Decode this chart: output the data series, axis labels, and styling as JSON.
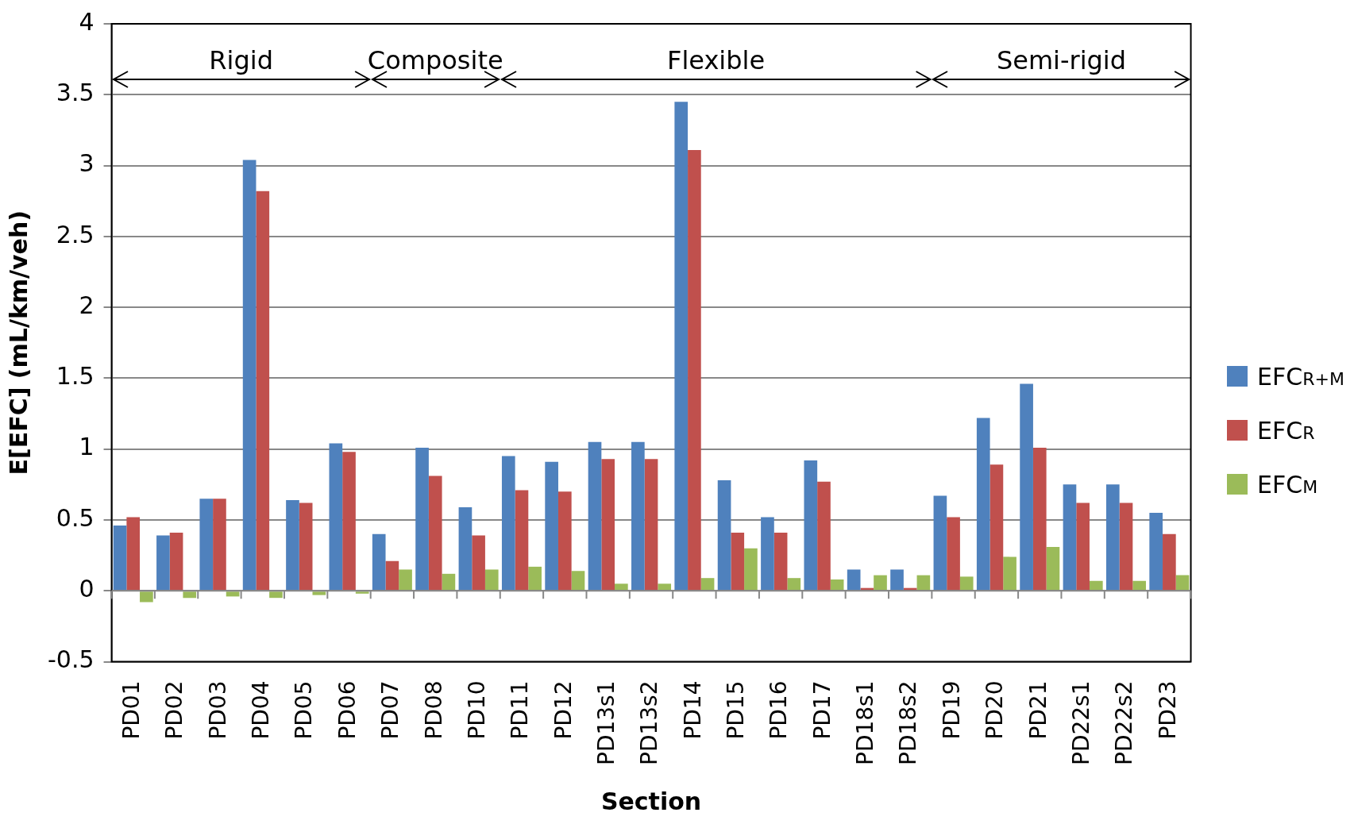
{
  "chart_data": {
    "type": "bar",
    "xlabel": "Section",
    "ylabel": "E[EFC] (mL/km/veh)",
    "categories": [
      "PD01",
      "PD02",
      "PD03",
      "PD04",
      "PD05",
      "PD06",
      "PD07",
      "PD08",
      "PD10",
      "PD11",
      "PD12",
      "PD13s1",
      "PD13s2",
      "PD14",
      "PD15",
      "PD16",
      "PD17",
      "PD18s1",
      "PD18s2",
      "PD19",
      "PD20",
      "PD21",
      "PD22s1",
      "PD22s2",
      "PD23"
    ],
    "series": [
      {
        "name": "EFC$_{R+M}$",
        "color": "#4f81bd",
        "values": [
          0.46,
          0.39,
          0.65,
          3.04,
          0.64,
          1.04,
          0.4,
          1.01,
          0.59,
          0.95,
          0.91,
          1.05,
          1.05,
          3.45,
          0.78,
          0.52,
          0.92,
          0.15,
          0.15,
          0.67,
          1.22,
          1.46,
          0.75,
          0.75,
          0.55
        ]
      },
      {
        "name": "EFC$_{R}$",
        "color": "#c0504d",
        "values": [
          0.52,
          0.41,
          0.65,
          2.82,
          0.62,
          0.98,
          0.21,
          0.81,
          0.39,
          0.71,
          0.7,
          0.93,
          0.93,
          3.11,
          0.41,
          0.41,
          0.77,
          0.02,
          0.02,
          0.52,
          0.89,
          1.01,
          0.62,
          0.62,
          0.4
        ]
      },
      {
        "name": "EFC$_{M}$",
        "color": "#9bbb59",
        "values": [
          -0.08,
          -0.05,
          -0.04,
          -0.05,
          -0.03,
          -0.02,
          0.15,
          0.12,
          0.15,
          0.17,
          0.14,
          0.05,
          0.05,
          0.09,
          0.3,
          0.09,
          0.08,
          0.11,
          0.11,
          0.1,
          0.24,
          0.31,
          0.07,
          0.07,
          0.11
        ]
      }
    ],
    "annotations": [
      "Rigid",
      "Composite",
      "Flexible",
      "Semi-rigid"
    ],
    "ylim": [
      -0.5,
      4
    ],
    "yticks": [
      -0.5,
      0,
      0.5,
      1,
      1.5,
      2,
      2.5,
      3,
      3.5,
      4
    ],
    "grid": "y",
    "legend": "right"
  }
}
